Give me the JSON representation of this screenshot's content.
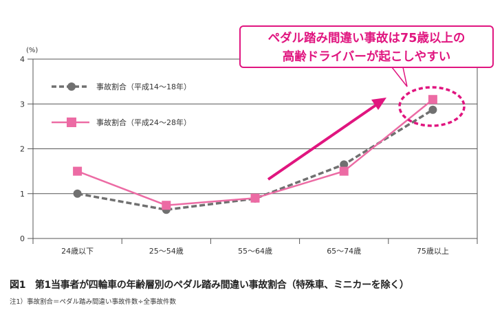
{
  "chart_data": {
    "type": "line",
    "unit_label": "(%)",
    "categories": [
      "24歳以下",
      "25〜54歳",
      "55〜64歳",
      "65〜74歳",
      "75歳以上"
    ],
    "ylim": [
      0,
      4
    ],
    "yticks": [
      "0",
      "1",
      "2",
      "3",
      "4"
    ],
    "grid": true,
    "legend_position": "top-left",
    "series": [
      {
        "name": "事故割合（平成14〜18年）",
        "values": [
          1.0,
          0.64,
          0.89,
          1.65,
          2.87
        ],
        "color": "#707070",
        "style": "dashed",
        "marker": "circle"
      },
      {
        "name": "事故割合（平成24〜28年）",
        "values": [
          1.5,
          0.74,
          0.9,
          1.5,
          3.1
        ],
        "color": "#ec6ba4",
        "style": "solid",
        "marker": "square"
      }
    ],
    "annotation": {
      "lines": [
        "ペダル踏み間違い事故は75歳以上の",
        "高齢ドライバーが起こしやすい"
      ],
      "color": "#e0157f"
    }
  },
  "caption": "図1　第1当事者が四輪車の年齢層別のペダル踏み間違い事故割合（特殊車、ミニカーを除く）",
  "note": "注1）事故割合＝ペダル踏み間違い事故件数÷全事故件数"
}
